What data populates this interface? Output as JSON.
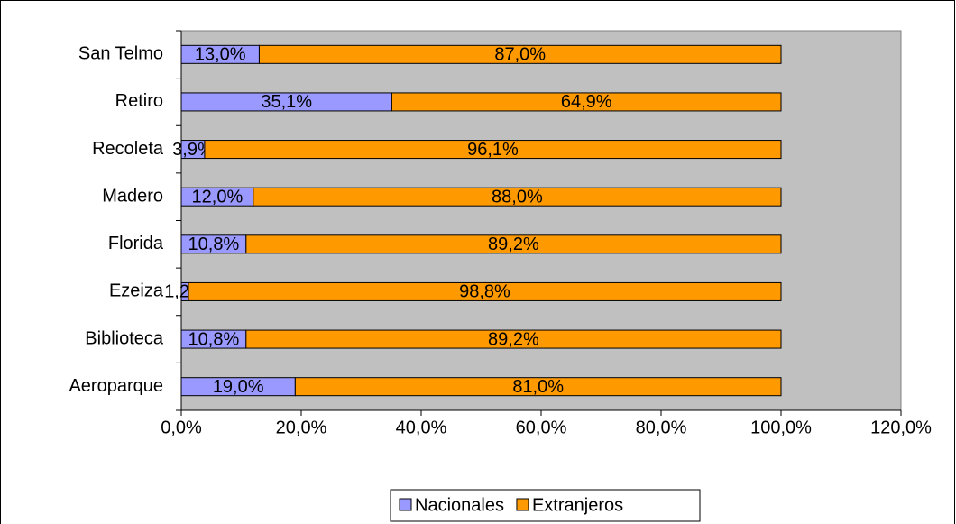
{
  "chart_data": {
    "type": "stacked-bar-horizontal",
    "categories": [
      "Aeroparque",
      "Biblioteca",
      "Ezeiza",
      "Florida",
      "Madero",
      "Recoleta",
      "Retiro",
      "San Telmo"
    ],
    "series": [
      {
        "name": "Nacionales",
        "color": "#9999ff",
        "values": [
          19.0,
          10.8,
          1.2,
          10.8,
          12.0,
          3.9,
          35.1,
          13.0
        ],
        "value_labels": [
          "19,0%",
          "10,8%",
          "1,2%",
          "10,8%",
          "12,0%",
          "3,9%",
          "35,1%",
          "13,0%"
        ]
      },
      {
        "name": "Extranjeros",
        "color": "#ff9900",
        "values": [
          81.0,
          89.2,
          98.8,
          89.2,
          88.0,
          96.1,
          64.9,
          87.0
        ],
        "value_labels": [
          "81,0%",
          "89,2%",
          "98,8%",
          "89,2%",
          "88,0%",
          "96,1%",
          "64,9%",
          "87,0%"
        ]
      }
    ],
    "xlim": [
      0,
      120
    ],
    "xticks": [
      {
        "value": 0,
        "label": "0,0%"
      },
      {
        "value": 20,
        "label": "20,0%"
      },
      {
        "value": 40,
        "label": "40,0%"
      },
      {
        "value": 60,
        "label": "60,0%"
      },
      {
        "value": 80,
        "label": "80,0%"
      },
      {
        "value": 100,
        "label": "100,0%"
      },
      {
        "value": 120,
        "label": "120,0%"
      }
    ],
    "legend": "bottom",
    "plot_background": "#c0c0c0"
  }
}
